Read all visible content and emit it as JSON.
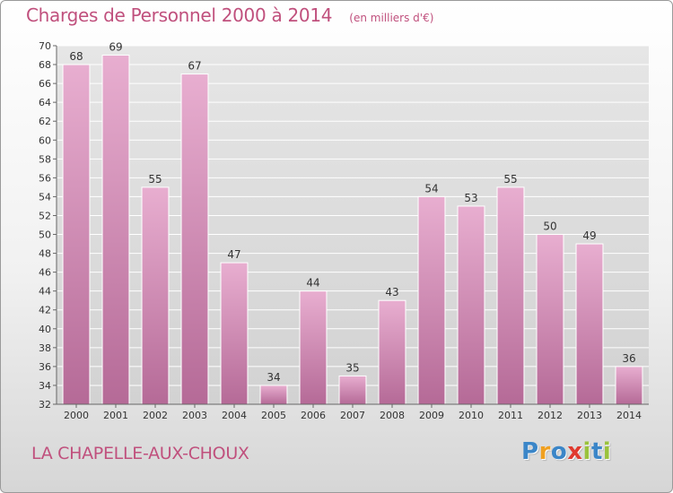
{
  "header": {
    "title": "Charges de Personnel 2000 à 2014",
    "subtitle": "(en milliers d'€)"
  },
  "footer": {
    "commune": "LA CHAPELLE-AUX-CHOUX",
    "logo_text": "Proxiti"
  },
  "colors": {
    "title": "#c0507d",
    "bar_top": "#e8aed0",
    "bar_bottom": "#b56a97",
    "logo": [
      "#3b86c8",
      "#f0a020",
      "#3b86c8",
      "#e03a2f",
      "#9ac23c",
      "#3b86c8",
      "#9ac23c"
    ]
  },
  "chart_data": {
    "type": "bar",
    "title": "Charges de Personnel 2000 à 2014",
    "subtitle": "(en milliers d'€)",
    "categories": [
      "2000",
      "2001",
      "2002",
      "2003",
      "2004",
      "2005",
      "2006",
      "2007",
      "2008",
      "2009",
      "2010",
      "2011",
      "2012",
      "2013",
      "2014"
    ],
    "values": [
      68,
      69,
      55,
      67,
      47,
      34,
      44,
      35,
      43,
      54,
      53,
      55,
      50,
      49,
      36
    ],
    "ylim": [
      32,
      70
    ],
    "yticks": [
      32,
      34,
      36,
      38,
      40,
      42,
      44,
      46,
      48,
      50,
      52,
      54,
      56,
      58,
      60,
      62,
      64,
      66,
      68,
      70
    ],
    "grid": true,
    "data_labels": true,
    "legend": "none"
  }
}
